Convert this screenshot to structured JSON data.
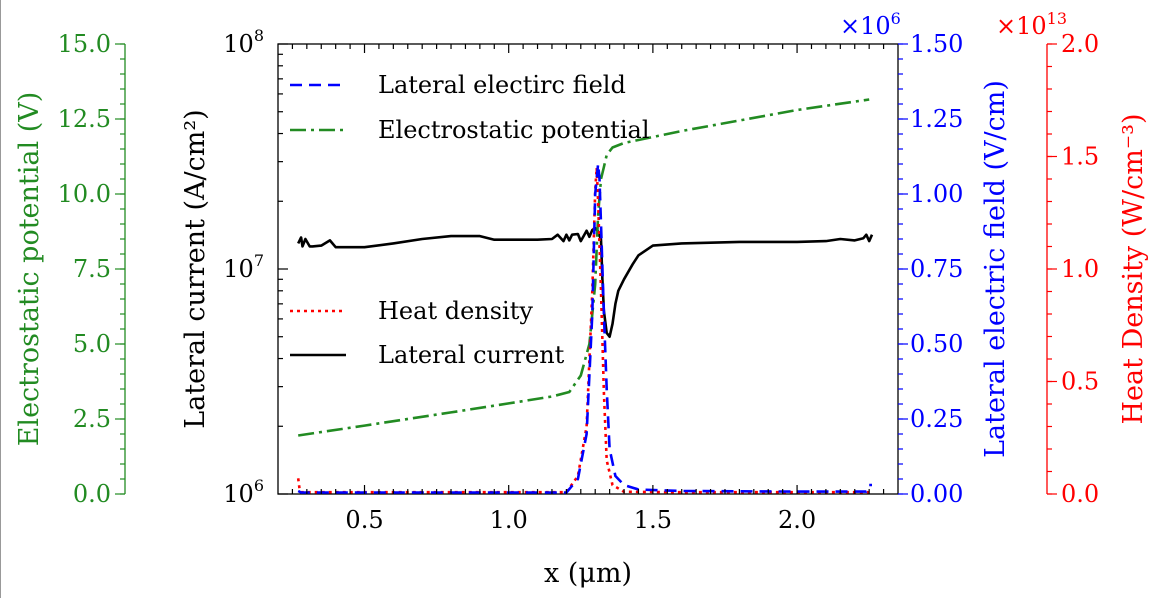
{
  "chart_data": {
    "type": "line",
    "title": "",
    "x": {
      "label": "x (μm)",
      "lim": [
        0.2,
        2.35
      ],
      "ticks": [
        0.5,
        1.0,
        1.5,
        2.0
      ],
      "tick_labels": [
        "0.5",
        "1.0",
        "1.5",
        "2.0"
      ]
    },
    "axes": {
      "current": {
        "label": "Lateral current (A/cm²)",
        "scale": "log",
        "lim": [
          1000000,
          100000000
        ],
        "ticks": [
          {
            "value": 1000000,
            "base": "10",
            "exp": "6"
          },
          {
            "value": 10000000,
            "base": "10",
            "exp": "7"
          },
          {
            "value": 100000000,
            "base": "10",
            "exp": "8"
          }
        ],
        "color": "#000000"
      },
      "potential": {
        "label": "Electrostatic potential (V)",
        "scale": "linear",
        "lim": [
          0,
          15
        ],
        "ticks": [
          0,
          2.5,
          5,
          7.5,
          10,
          12.5,
          15
        ],
        "tick_labels": [
          "0.0",
          "2.5",
          "5.0",
          "7.5",
          "10.0",
          "12.5",
          "15.0"
        ],
        "color": "#228B22"
      },
      "field": {
        "label": "Lateral electric field (V/cm)",
        "scale": "linear",
        "lim": [
          0,
          1.5
        ],
        "multiplier": {
          "base": "×10",
          "exp": "6"
        },
        "ticks": [
          0,
          0.25,
          0.5,
          0.75,
          1.0,
          1.25,
          1.5
        ],
        "tick_labels": [
          "0.00",
          "0.25",
          "0.50",
          "0.75",
          "1.00",
          "1.25",
          "1.50"
        ],
        "color": "#0000FF"
      },
      "heat": {
        "label": "Heat Density (W/cm⁻³)",
        "scale": "linear",
        "lim": [
          0,
          2.0
        ],
        "multiplier": {
          "base": "×10",
          "exp": "13"
        },
        "ticks": [
          0,
          0.5,
          1.0,
          1.5,
          2.0
        ],
        "tick_labels": [
          "0.0",
          "0.5",
          "1.0",
          "1.5",
          "2.0"
        ],
        "color": "#FF0000"
      }
    },
    "legend": [
      {
        "label": "Lateral electirc field",
        "series": "field",
        "position": "upper-left"
      },
      {
        "label": "Electrostatic potential",
        "series": "potential",
        "position": "upper-left"
      },
      {
        "label": "Heat density",
        "series": "heat",
        "position": "middle-left"
      },
      {
        "label": "Lateral current",
        "series": "current",
        "position": "middle-left"
      }
    ],
    "series": [
      {
        "name": "Lateral electirc field",
        "axis": "field",
        "color": "#0000FF",
        "dash": "12,7",
        "x": [
          0.27,
          0.28,
          0.5,
          0.8,
          1.1,
          1.2,
          1.24,
          1.27,
          1.29,
          1.3,
          1.31,
          1.315,
          1.32,
          1.33,
          1.34,
          1.35,
          1.37,
          1.4,
          1.45,
          1.6,
          2.0,
          2.24,
          2.25,
          2.26
        ],
        "y": [
          0.01,
          0.005,
          0.005,
          0.005,
          0.005,
          0.005,
          0.05,
          0.2,
          0.6,
          1.0,
          1.1,
          1.05,
          0.9,
          0.6,
          0.35,
          0.15,
          0.06,
          0.03,
          0.015,
          0.01,
          0.008,
          0.008,
          0.03,
          0.03
        ]
      },
      {
        "name": "Electrostatic potential",
        "axis": "potential",
        "color": "#228B22",
        "dash": "16,5,3,5",
        "x": [
          0.27,
          0.5,
          0.8,
          1.0,
          1.15,
          1.21,
          1.25,
          1.28,
          1.3,
          1.31,
          1.32,
          1.33,
          1.34,
          1.36,
          1.4,
          1.6,
          1.8,
          2.0,
          2.25
        ],
        "y": [
          1.95,
          2.28,
          2.72,
          3.02,
          3.25,
          3.4,
          3.95,
          5.0,
          7.0,
          9.3,
          10.5,
          10.9,
          11.3,
          11.55,
          11.7,
          12.1,
          12.45,
          12.8,
          13.15
        ]
      },
      {
        "name": "Heat density",
        "axis": "heat",
        "color": "#FF0000",
        "dash": "3,4",
        "x": [
          0.27,
          0.275,
          0.28,
          0.3,
          0.5,
          0.8,
          1.1,
          1.2,
          1.24,
          1.27,
          1.29,
          1.3,
          1.305,
          1.31,
          1.32,
          1.33,
          1.34,
          1.36,
          1.4,
          1.6,
          2.0,
          2.25
        ],
        "y": [
          0.07,
          0.02,
          0.008,
          0.008,
          0.008,
          0.008,
          0.008,
          0.008,
          0.08,
          0.3,
          0.9,
          1.35,
          1.45,
          1.3,
          0.9,
          0.45,
          0.15,
          0.04,
          0.01,
          0.008,
          0.008,
          0.008
        ]
      },
      {
        "name": "Lateral current",
        "axis": "current",
        "color": "#000000",
        "dash": "",
        "x": [
          0.27,
          0.28,
          0.285,
          0.295,
          0.31,
          0.32,
          0.35,
          0.38,
          0.4,
          0.5,
          0.6,
          0.7,
          0.8,
          0.9,
          0.95,
          1.0,
          1.1,
          1.15,
          1.17,
          1.19,
          1.2,
          1.21,
          1.22,
          1.24,
          1.25,
          1.27,
          1.28,
          1.29,
          1.3,
          1.31,
          1.32,
          1.325,
          1.33,
          1.34,
          1.35,
          1.36,
          1.37,
          1.38,
          1.4,
          1.43,
          1.45,
          1.5,
          1.6,
          1.8,
          2.0,
          2.1,
          2.15,
          2.2,
          2.23,
          2.24,
          2.25,
          2.26
        ],
        "y": [
          13000000,
          13800000,
          12600000,
          13600000,
          12600000,
          12600000,
          12700000,
          13400000,
          12500000,
          12500000,
          13000000,
          13600000,
          14000000,
          14000000,
          13500000,
          13500000,
          13500000,
          13600000,
          14200000,
          13300000,
          14200000,
          13400000,
          14200000,
          14300000,
          13300000,
          14800000,
          13900000,
          14900000,
          15200000,
          14700000,
          13500000,
          9000000,
          6500000,
          5200000,
          5000000,
          5700000,
          7000000,
          8000000,
          9000000,
          10500000,
          11500000,
          12700000,
          13000000,
          13200000,
          13200000,
          13300000,
          13600000,
          13400000,
          13700000,
          14200000,
          13300000,
          14200000
        ]
      }
    ]
  }
}
